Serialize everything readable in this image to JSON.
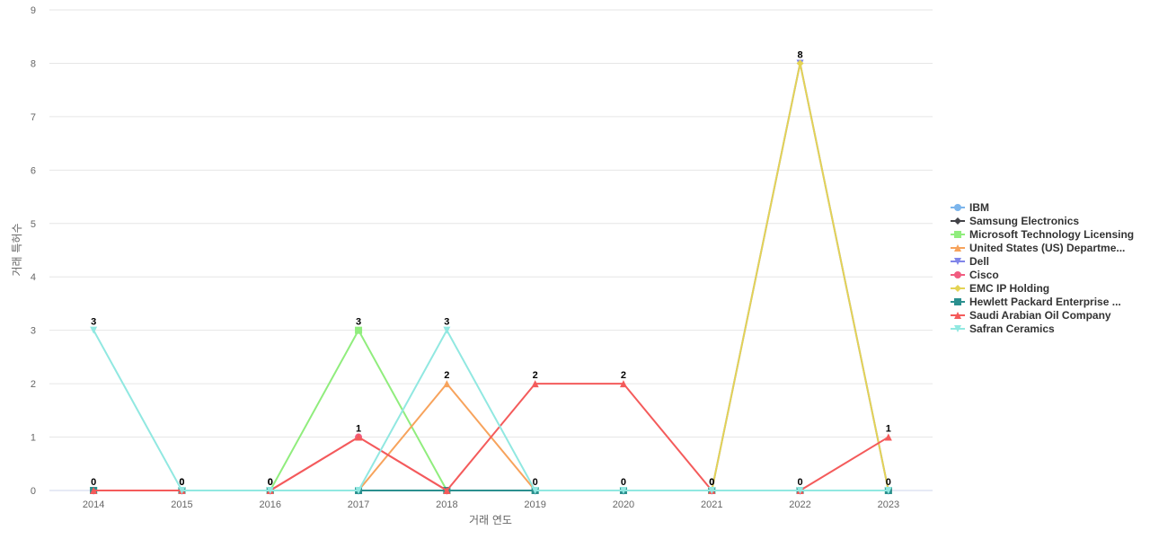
{
  "chart_data": {
    "type": "line",
    "title": "",
    "xlabel": "거래 연도",
    "ylabel": "거래 특허수",
    "x": [
      "2014",
      "2015",
      "2016",
      "2017",
      "2018",
      "2019",
      "2020",
      "2021",
      "2022",
      "2023"
    ],
    "ylim": [
      0,
      9
    ],
    "yticks": [
      0,
      1,
      2,
      3,
      4,
      5,
      6,
      7,
      8,
      9
    ],
    "grid": true,
    "legend_position": "right",
    "series": [
      {
        "name": "IBM",
        "color": "#7cb5ec",
        "marker": "circle",
        "values": [
          0,
          0,
          0,
          0,
          0,
          0,
          0,
          0,
          0,
          0
        ]
      },
      {
        "name": "Samsung Electronics",
        "color": "#434348",
        "marker": "diamond",
        "values": [
          0,
          0,
          0,
          0,
          0,
          0,
          0,
          0,
          0,
          0
        ]
      },
      {
        "name": "Microsoft Technology Licensing",
        "color": "#90ed7d",
        "marker": "square",
        "values": [
          0,
          0,
          0,
          3,
          0,
          0,
          0,
          0,
          0,
          0
        ]
      },
      {
        "name": "United States (US) Departme...",
        "color": "#f7a35c",
        "marker": "triangle",
        "values": [
          0,
          0,
          0,
          0,
          2,
          0,
          0,
          0,
          0,
          0
        ]
      },
      {
        "name": "Dell",
        "color": "#8085e9",
        "marker": "triangle-down",
        "values": [
          0,
          0,
          0,
          0,
          0,
          0,
          0,
          0,
          8,
          0
        ]
      },
      {
        "name": "Cisco",
        "color": "#f15c80",
        "marker": "circle",
        "values": [
          0,
          0,
          0,
          1,
          0,
          0,
          0,
          0,
          0,
          0
        ]
      },
      {
        "name": "EMC IP Holding",
        "color": "#e4d354",
        "marker": "diamond",
        "values": [
          0,
          0,
          0,
          0,
          0,
          0,
          0,
          0,
          8,
          0
        ]
      },
      {
        "name": "Hewlett Packard Enterprise ...",
        "color": "#2b908f",
        "marker": "square",
        "values": [
          0,
          0,
          0,
          0,
          0,
          0,
          0,
          0,
          0,
          0
        ]
      },
      {
        "name": "Saudi Arabian Oil Company",
        "color": "#f45b5b",
        "marker": "triangle",
        "values": [
          0,
          0,
          0,
          1,
          0,
          2,
          2,
          0,
          0,
          1
        ]
      },
      {
        "name": "Safran Ceramics",
        "color": "#91e8e1",
        "marker": "triangle-down",
        "values": [
          3,
          0,
          0,
          0,
          3,
          0,
          0,
          0,
          0,
          0
        ]
      }
    ],
    "data_labels": [
      3,
      0,
      0,
      3,
      3,
      2,
      2,
      0,
      8,
      1
    ],
    "low_labels": [
      0,
      0,
      0,
      1,
      2,
      0,
      0,
      0,
      0,
      0
    ]
  }
}
